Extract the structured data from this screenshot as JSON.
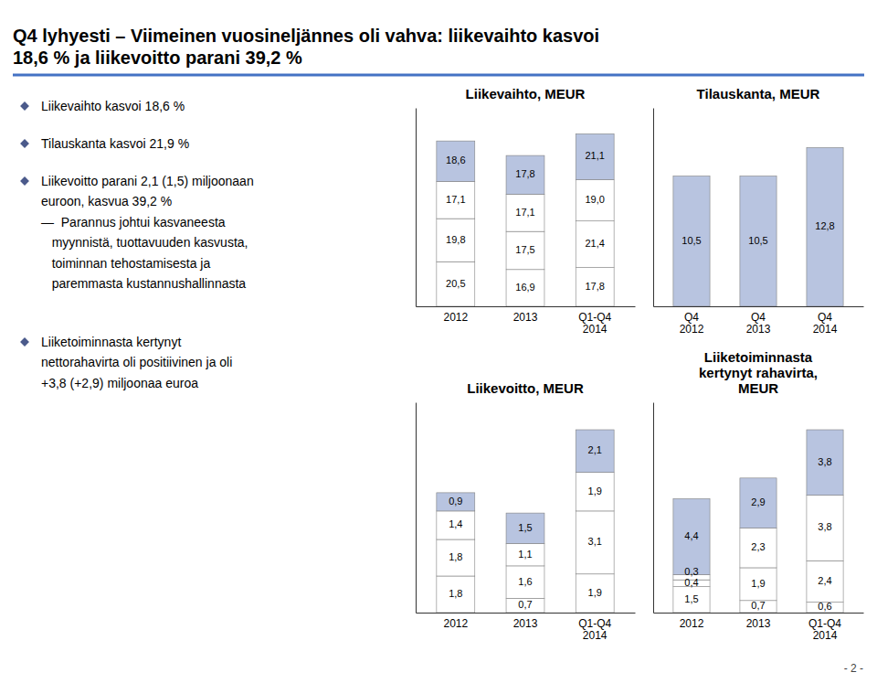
{
  "title": [
    "Q4 lyhyesti – Viimeinen vuosineljännes oli vahva: liikevaihto kasvoi",
    "18,6 % ja liikevoitto parani 39,2 %"
  ],
  "annotations": [
    [
      "Liikevaihto kasvoi 18,6 %"
    ],
    [
      "Tilauskanta kasvoi 21,9 %"
    ],
    [
      "Liikevoitto parani 2,1 (1,5) miljoonaan",
      "euroon, kasvua 39,2 %",
      "—  Parannus johtui kasvaneesta",
      "   myynnistä, tuottavuuden kasvusta,",
      "   toiminnan tehostamisesta ja",
      "   paremmasta kustannushallinnasta"
    ],
    [
      "Liiketoiminnasta kertynyt",
      "nettorahavirta oli positiivinen ja oli",
      "+3,8 (+2,9) miljoonaa euroa"
    ]
  ],
  "page_number": "- 2 -",
  "chart_data": [
    {
      "type": "bar",
      "title": "Liikevaihto, MEUR",
      "categories": [
        "2012",
        "2013",
        "Q1-Q4\n2014"
      ],
      "stacked": true,
      "data_labels": true,
      "tick_labels": "x",
      "ylim": [
        0,
        91.195
      ],
      "series": [
        {
          "color": "#ffffff",
          "values": [
            20.5,
            16.9,
            17.8
          ],
          "value_labels": [
            "20,5",
            "16,9",
            "17,8"
          ]
        },
        {
          "color": "#ffffff",
          "values": [
            19.8,
            17.5,
            21.4
          ],
          "value_labels": [
            "19,8",
            "17,5",
            "21,4"
          ]
        },
        {
          "color": "#ffffff",
          "values": [
            17.1,
            17.1,
            19.0
          ],
          "value_labels": [
            "17,1",
            "17,1",
            "19,0"
          ]
        },
        {
          "color": "#b8c4e0",
          "values": [
            18.6,
            17.8,
            21.1
          ],
          "value_labels": [
            "18,6",
            "17,8",
            "21,1"
          ]
        }
      ]
    },
    {
      "type": "bar",
      "title": "Tilauskanta, MEUR",
      "categories": [
        "Q4\n2012",
        "Q4\n2013",
        "Q4\n2014"
      ],
      "data_labels": true,
      "tick_labels": "x",
      "ylim": [
        0,
        16
      ],
      "color": "#b8c4e0",
      "values": [
        10.5,
        10.5,
        12.8
      ],
      "value_labels": [
        "10,5",
        "10,5",
        "12,8"
      ]
    },
    {
      "type": "bar",
      "title": "Liikevoitto, MEUR",
      "categories": [
        "2012",
        "2013",
        "Q1-Q4\n2014"
      ],
      "stacked": true,
      "data_labels": true,
      "tick_labels": "x",
      "ylim": [
        0,
        10.35
      ],
      "series": [
        {
          "color": "#ffffff",
          "values": [
            1.8,
            0.7,
            1.9
          ],
          "value_labels": [
            "1,8",
            "0,7",
            "1,9"
          ]
        },
        {
          "color": "#ffffff",
          "values": [
            1.8,
            1.6,
            3.1
          ],
          "value_labels": [
            "1,8",
            "1,6",
            "3,1"
          ]
        },
        {
          "color": "#ffffff",
          "values": [
            1.4,
            1.1,
            1.9
          ],
          "value_labels": [
            "1,4",
            "1,1",
            "1,9"
          ]
        },
        {
          "color": "#b8c4e0",
          "values": [
            0.9,
            1.5,
            2.1
          ],
          "value_labels": [
            "0,9",
            "1,5",
            "2,1"
          ]
        }
      ]
    },
    {
      "type": "bar",
      "title": "Liiketoiminnasta\nkertynyt rahavirta,\nMEUR",
      "categories": [
        "2012",
        "2013",
        "Q1-Q4\n2014"
      ],
      "stacked": true,
      "data_labels": true,
      "tick_labels": "x",
      "ylim": [
        0,
        12.19
      ],
      "series": [
        {
          "color": "#ffffff",
          "values": [
            1.5,
            0.7,
            0.6
          ],
          "value_labels": [
            "1,5",
            "0,7",
            "0,6"
          ]
        },
        {
          "color": "#ffffff",
          "values": [
            0.4,
            1.9,
            2.4
          ],
          "value_labels": [
            "0,4",
            "1,9",
            "2,4"
          ]
        },
        {
          "color": "#ffffff",
          "values": [
            0.3,
            2.3,
            3.8
          ],
          "value_labels": [
            "0,3",
            "2,3",
            "3,8"
          ]
        },
        {
          "color": "#b8c4e0",
          "values": [
            4.4,
            2.9,
            3.8
          ],
          "value_labels": [
            "4,4",
            "2,9",
            "3,8"
          ]
        }
      ]
    }
  ]
}
